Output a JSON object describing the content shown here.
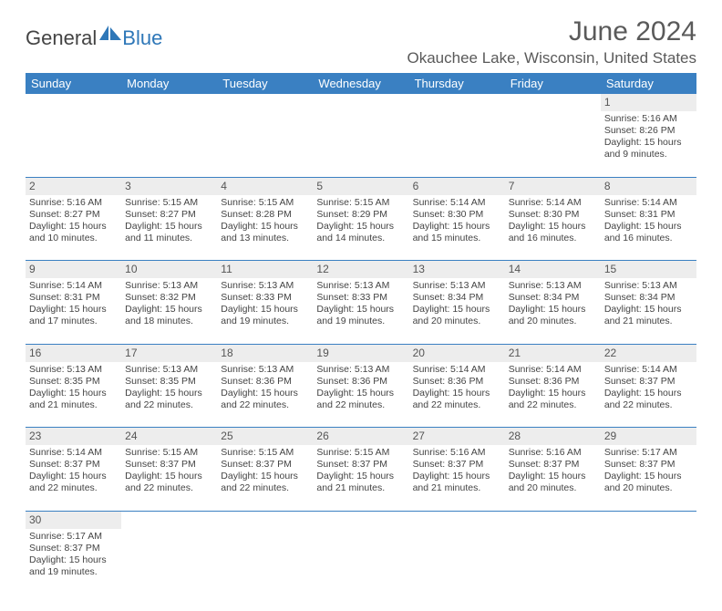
{
  "brand": {
    "text_dark": "General",
    "text_blue": "Blue"
  },
  "title": "June 2024",
  "location": "Okauchee Lake, Wisconsin, United States",
  "colors": {
    "header_bg": "#3a80c2",
    "header_text": "#ffffff",
    "daynum_bg": "#ededed",
    "rule": "#3a80c2",
    "title_text": "#5a5a5a",
    "body_text": "#444444"
  },
  "day_headers": [
    "Sunday",
    "Monday",
    "Tuesday",
    "Wednesday",
    "Thursday",
    "Friday",
    "Saturday"
  ],
  "weeks": [
    [
      null,
      null,
      null,
      null,
      null,
      null,
      {
        "n": "1",
        "sunrise": "Sunrise: 5:16 AM",
        "sunset": "Sunset: 8:26 PM",
        "daylight": "Daylight: 15 hours and 9 minutes."
      }
    ],
    [
      {
        "n": "2",
        "sunrise": "Sunrise: 5:16 AM",
        "sunset": "Sunset: 8:27 PM",
        "daylight": "Daylight: 15 hours and 10 minutes."
      },
      {
        "n": "3",
        "sunrise": "Sunrise: 5:15 AM",
        "sunset": "Sunset: 8:27 PM",
        "daylight": "Daylight: 15 hours and 11 minutes."
      },
      {
        "n": "4",
        "sunrise": "Sunrise: 5:15 AM",
        "sunset": "Sunset: 8:28 PM",
        "daylight": "Daylight: 15 hours and 13 minutes."
      },
      {
        "n": "5",
        "sunrise": "Sunrise: 5:15 AM",
        "sunset": "Sunset: 8:29 PM",
        "daylight": "Daylight: 15 hours and 14 minutes."
      },
      {
        "n": "6",
        "sunrise": "Sunrise: 5:14 AM",
        "sunset": "Sunset: 8:30 PM",
        "daylight": "Daylight: 15 hours and 15 minutes."
      },
      {
        "n": "7",
        "sunrise": "Sunrise: 5:14 AM",
        "sunset": "Sunset: 8:30 PM",
        "daylight": "Daylight: 15 hours and 16 minutes."
      },
      {
        "n": "8",
        "sunrise": "Sunrise: 5:14 AM",
        "sunset": "Sunset: 8:31 PM",
        "daylight": "Daylight: 15 hours and 16 minutes."
      }
    ],
    [
      {
        "n": "9",
        "sunrise": "Sunrise: 5:14 AM",
        "sunset": "Sunset: 8:31 PM",
        "daylight": "Daylight: 15 hours and 17 minutes."
      },
      {
        "n": "10",
        "sunrise": "Sunrise: 5:13 AM",
        "sunset": "Sunset: 8:32 PM",
        "daylight": "Daylight: 15 hours and 18 minutes."
      },
      {
        "n": "11",
        "sunrise": "Sunrise: 5:13 AM",
        "sunset": "Sunset: 8:33 PM",
        "daylight": "Daylight: 15 hours and 19 minutes."
      },
      {
        "n": "12",
        "sunrise": "Sunrise: 5:13 AM",
        "sunset": "Sunset: 8:33 PM",
        "daylight": "Daylight: 15 hours and 19 minutes."
      },
      {
        "n": "13",
        "sunrise": "Sunrise: 5:13 AM",
        "sunset": "Sunset: 8:34 PM",
        "daylight": "Daylight: 15 hours and 20 minutes."
      },
      {
        "n": "14",
        "sunrise": "Sunrise: 5:13 AM",
        "sunset": "Sunset: 8:34 PM",
        "daylight": "Daylight: 15 hours and 20 minutes."
      },
      {
        "n": "15",
        "sunrise": "Sunrise: 5:13 AM",
        "sunset": "Sunset: 8:34 PM",
        "daylight": "Daylight: 15 hours and 21 minutes."
      }
    ],
    [
      {
        "n": "16",
        "sunrise": "Sunrise: 5:13 AM",
        "sunset": "Sunset: 8:35 PM",
        "daylight": "Daylight: 15 hours and 21 minutes."
      },
      {
        "n": "17",
        "sunrise": "Sunrise: 5:13 AM",
        "sunset": "Sunset: 8:35 PM",
        "daylight": "Daylight: 15 hours and 22 minutes."
      },
      {
        "n": "18",
        "sunrise": "Sunrise: 5:13 AM",
        "sunset": "Sunset: 8:36 PM",
        "daylight": "Daylight: 15 hours and 22 minutes."
      },
      {
        "n": "19",
        "sunrise": "Sunrise: 5:13 AM",
        "sunset": "Sunset: 8:36 PM",
        "daylight": "Daylight: 15 hours and 22 minutes."
      },
      {
        "n": "20",
        "sunrise": "Sunrise: 5:14 AM",
        "sunset": "Sunset: 8:36 PM",
        "daylight": "Daylight: 15 hours and 22 minutes."
      },
      {
        "n": "21",
        "sunrise": "Sunrise: 5:14 AM",
        "sunset": "Sunset: 8:36 PM",
        "daylight": "Daylight: 15 hours and 22 minutes."
      },
      {
        "n": "22",
        "sunrise": "Sunrise: 5:14 AM",
        "sunset": "Sunset: 8:37 PM",
        "daylight": "Daylight: 15 hours and 22 minutes."
      }
    ],
    [
      {
        "n": "23",
        "sunrise": "Sunrise: 5:14 AM",
        "sunset": "Sunset: 8:37 PM",
        "daylight": "Daylight: 15 hours and 22 minutes."
      },
      {
        "n": "24",
        "sunrise": "Sunrise: 5:15 AM",
        "sunset": "Sunset: 8:37 PM",
        "daylight": "Daylight: 15 hours and 22 minutes."
      },
      {
        "n": "25",
        "sunrise": "Sunrise: 5:15 AM",
        "sunset": "Sunset: 8:37 PM",
        "daylight": "Daylight: 15 hours and 22 minutes."
      },
      {
        "n": "26",
        "sunrise": "Sunrise: 5:15 AM",
        "sunset": "Sunset: 8:37 PM",
        "daylight": "Daylight: 15 hours and 21 minutes."
      },
      {
        "n": "27",
        "sunrise": "Sunrise: 5:16 AM",
        "sunset": "Sunset: 8:37 PM",
        "daylight": "Daylight: 15 hours and 21 minutes."
      },
      {
        "n": "28",
        "sunrise": "Sunrise: 5:16 AM",
        "sunset": "Sunset: 8:37 PM",
        "daylight": "Daylight: 15 hours and 20 minutes."
      },
      {
        "n": "29",
        "sunrise": "Sunrise: 5:17 AM",
        "sunset": "Sunset: 8:37 PM",
        "daylight": "Daylight: 15 hours and 20 minutes."
      }
    ],
    [
      {
        "n": "30",
        "sunrise": "Sunrise: 5:17 AM",
        "sunset": "Sunset: 8:37 PM",
        "daylight": "Daylight: 15 hours and 19 minutes."
      },
      null,
      null,
      null,
      null,
      null,
      null
    ]
  ]
}
